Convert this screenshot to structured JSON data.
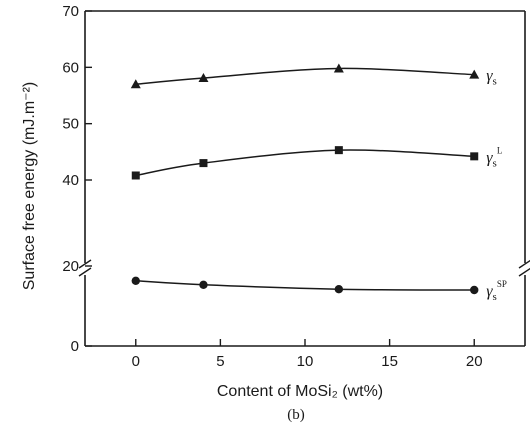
{
  "chart_data": {
    "type": "line",
    "title": "",
    "panel_label": "(b)",
    "xlabel": "Content of MoSi₂ (wt%)",
    "ylabel": "Surface free energy (mJ.m⁻²)",
    "xlim": [
      -3,
      23
    ],
    "ylim": [
      0,
      70
    ],
    "y_axis_break": [
      20,
      35
    ],
    "x_ticks": [
      0,
      5,
      10,
      15,
      20
    ],
    "y_ticks": [
      0,
      20,
      40,
      50,
      60,
      70
    ],
    "x_tick_labels": [
      "0",
      "5",
      "10",
      "15",
      "20"
    ],
    "y_tick_labels": [
      "0",
      "20",
      "40",
      "50",
      "60",
      "70"
    ],
    "grid": false,
    "x": [
      0,
      4,
      12,
      20
    ],
    "series": [
      {
        "name": "γs",
        "label_main": "γ",
        "label_sub": "s",
        "label_sup": "",
        "marker": "triangle",
        "values": [
          57.0,
          58.1,
          59.8,
          58.7
        ]
      },
      {
        "name": "γsL",
        "label_main": "γ",
        "label_sub": "s",
        "label_sup": "L",
        "marker": "square",
        "values": [
          40.8,
          43.0,
          45.3,
          44.2
        ]
      },
      {
        "name": "γsSP",
        "label_main": "γ",
        "label_sub": "s",
        "label_sup": "SP",
        "marker": "circle",
        "values": [
          16.3,
          15.3,
          14.2,
          14.0
        ]
      }
    ]
  }
}
